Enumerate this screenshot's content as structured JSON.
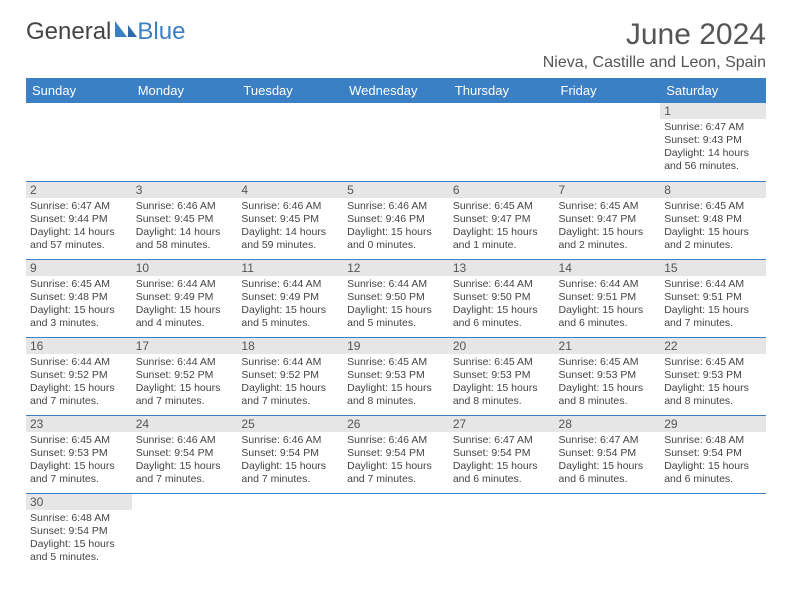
{
  "logo": {
    "text_general": "General",
    "text_blue": "Blue"
  },
  "header": {
    "month_title": "June 2024",
    "location": "Nieva, Castille and Leon, Spain"
  },
  "colors": {
    "header_bg": "#3b7fc4",
    "header_fg": "#ffffff",
    "daynum_bg": "#e6e6e6",
    "border": "#3b7fc4",
    "text": "#444444",
    "title": "#555555"
  },
  "calendar": {
    "day_names": [
      "Sunday",
      "Monday",
      "Tuesday",
      "Wednesday",
      "Thursday",
      "Friday",
      "Saturday"
    ],
    "weeks": [
      [
        null,
        null,
        null,
        null,
        null,
        null,
        {
          "n": "1",
          "sunrise": "Sunrise: 6:47 AM",
          "sunset": "Sunset: 9:43 PM",
          "daylight": "Daylight: 14 hours and 56 minutes."
        }
      ],
      [
        {
          "n": "2",
          "sunrise": "Sunrise: 6:47 AM",
          "sunset": "Sunset: 9:44 PM",
          "daylight": "Daylight: 14 hours and 57 minutes."
        },
        {
          "n": "3",
          "sunrise": "Sunrise: 6:46 AM",
          "sunset": "Sunset: 9:45 PM",
          "daylight": "Daylight: 14 hours and 58 minutes."
        },
        {
          "n": "4",
          "sunrise": "Sunrise: 6:46 AM",
          "sunset": "Sunset: 9:45 PM",
          "daylight": "Daylight: 14 hours and 59 minutes."
        },
        {
          "n": "5",
          "sunrise": "Sunrise: 6:46 AM",
          "sunset": "Sunset: 9:46 PM",
          "daylight": "Daylight: 15 hours and 0 minutes."
        },
        {
          "n": "6",
          "sunrise": "Sunrise: 6:45 AM",
          "sunset": "Sunset: 9:47 PM",
          "daylight": "Daylight: 15 hours and 1 minute."
        },
        {
          "n": "7",
          "sunrise": "Sunrise: 6:45 AM",
          "sunset": "Sunset: 9:47 PM",
          "daylight": "Daylight: 15 hours and 2 minutes."
        },
        {
          "n": "8",
          "sunrise": "Sunrise: 6:45 AM",
          "sunset": "Sunset: 9:48 PM",
          "daylight": "Daylight: 15 hours and 2 minutes."
        }
      ],
      [
        {
          "n": "9",
          "sunrise": "Sunrise: 6:45 AM",
          "sunset": "Sunset: 9:48 PM",
          "daylight": "Daylight: 15 hours and 3 minutes."
        },
        {
          "n": "10",
          "sunrise": "Sunrise: 6:44 AM",
          "sunset": "Sunset: 9:49 PM",
          "daylight": "Daylight: 15 hours and 4 minutes."
        },
        {
          "n": "11",
          "sunrise": "Sunrise: 6:44 AM",
          "sunset": "Sunset: 9:49 PM",
          "daylight": "Daylight: 15 hours and 5 minutes."
        },
        {
          "n": "12",
          "sunrise": "Sunrise: 6:44 AM",
          "sunset": "Sunset: 9:50 PM",
          "daylight": "Daylight: 15 hours and 5 minutes."
        },
        {
          "n": "13",
          "sunrise": "Sunrise: 6:44 AM",
          "sunset": "Sunset: 9:50 PM",
          "daylight": "Daylight: 15 hours and 6 minutes."
        },
        {
          "n": "14",
          "sunrise": "Sunrise: 6:44 AM",
          "sunset": "Sunset: 9:51 PM",
          "daylight": "Daylight: 15 hours and 6 minutes."
        },
        {
          "n": "15",
          "sunrise": "Sunrise: 6:44 AM",
          "sunset": "Sunset: 9:51 PM",
          "daylight": "Daylight: 15 hours and 7 minutes."
        }
      ],
      [
        {
          "n": "16",
          "sunrise": "Sunrise: 6:44 AM",
          "sunset": "Sunset: 9:52 PM",
          "daylight": "Daylight: 15 hours and 7 minutes."
        },
        {
          "n": "17",
          "sunrise": "Sunrise: 6:44 AM",
          "sunset": "Sunset: 9:52 PM",
          "daylight": "Daylight: 15 hours and 7 minutes."
        },
        {
          "n": "18",
          "sunrise": "Sunrise: 6:44 AM",
          "sunset": "Sunset: 9:52 PM",
          "daylight": "Daylight: 15 hours and 7 minutes."
        },
        {
          "n": "19",
          "sunrise": "Sunrise: 6:45 AM",
          "sunset": "Sunset: 9:53 PM",
          "daylight": "Daylight: 15 hours and 8 minutes."
        },
        {
          "n": "20",
          "sunrise": "Sunrise: 6:45 AM",
          "sunset": "Sunset: 9:53 PM",
          "daylight": "Daylight: 15 hours and 8 minutes."
        },
        {
          "n": "21",
          "sunrise": "Sunrise: 6:45 AM",
          "sunset": "Sunset: 9:53 PM",
          "daylight": "Daylight: 15 hours and 8 minutes."
        },
        {
          "n": "22",
          "sunrise": "Sunrise: 6:45 AM",
          "sunset": "Sunset: 9:53 PM",
          "daylight": "Daylight: 15 hours and 8 minutes."
        }
      ],
      [
        {
          "n": "23",
          "sunrise": "Sunrise: 6:45 AM",
          "sunset": "Sunset: 9:53 PM",
          "daylight": "Daylight: 15 hours and 7 minutes."
        },
        {
          "n": "24",
          "sunrise": "Sunrise: 6:46 AM",
          "sunset": "Sunset: 9:54 PM",
          "daylight": "Daylight: 15 hours and 7 minutes."
        },
        {
          "n": "25",
          "sunrise": "Sunrise: 6:46 AM",
          "sunset": "Sunset: 9:54 PM",
          "daylight": "Daylight: 15 hours and 7 minutes."
        },
        {
          "n": "26",
          "sunrise": "Sunrise: 6:46 AM",
          "sunset": "Sunset: 9:54 PM",
          "daylight": "Daylight: 15 hours and 7 minutes."
        },
        {
          "n": "27",
          "sunrise": "Sunrise: 6:47 AM",
          "sunset": "Sunset: 9:54 PM",
          "daylight": "Daylight: 15 hours and 6 minutes."
        },
        {
          "n": "28",
          "sunrise": "Sunrise: 6:47 AM",
          "sunset": "Sunset: 9:54 PM",
          "daylight": "Daylight: 15 hours and 6 minutes."
        },
        {
          "n": "29",
          "sunrise": "Sunrise: 6:48 AM",
          "sunset": "Sunset: 9:54 PM",
          "daylight": "Daylight: 15 hours and 6 minutes."
        }
      ],
      [
        {
          "n": "30",
          "sunrise": "Sunrise: 6:48 AM",
          "sunset": "Sunset: 9:54 PM",
          "daylight": "Daylight: 15 hours and 5 minutes."
        },
        null,
        null,
        null,
        null,
        null,
        null
      ]
    ]
  }
}
